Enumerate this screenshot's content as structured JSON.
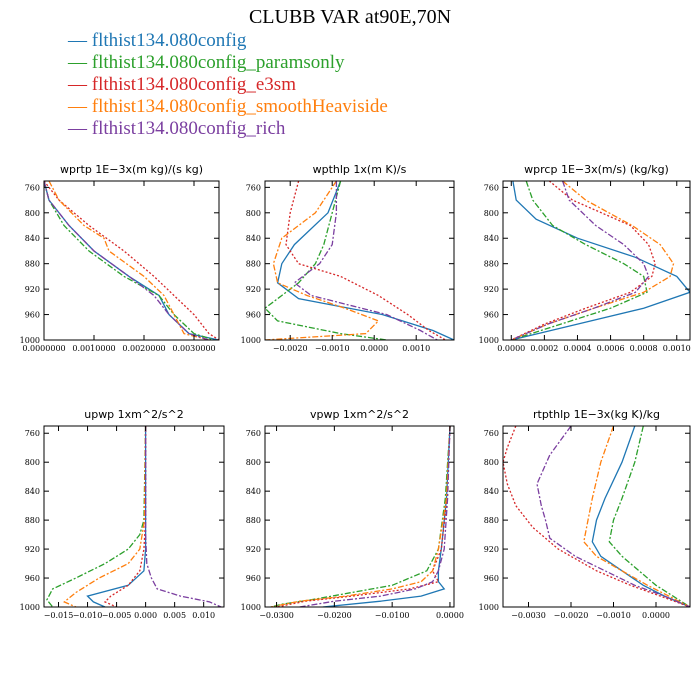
{
  "figure_title": "CLUBB VAR at90E,70N",
  "legend": [
    {
      "label": "— flthist134.080config",
      "color": "#1f77b4"
    },
    {
      "label": "— flthist134.080config_paramsonly",
      "color": "#2ca02c"
    },
    {
      "label": "— flthist134.080config_e3sm",
      "color": "#d62728"
    },
    {
      "label": "— flthist134.080config_smoothHeaviside",
      "color": "#ff7f0e"
    },
    {
      "label": "— flthist134.080config_rich",
      "color": "#7b3fa0"
    }
  ],
  "chart_data": [
    {
      "type": "line",
      "title": "wprtp  1E−3x(m kg)/(s kg)",
      "xlim": [
        0,
        0.0035
      ],
      "ylim": [
        1000,
        750
      ],
      "y_inverted": true,
      "xticks": [
        0,
        0.001,
        0.002,
        0.003
      ],
      "xticklabels": [
        "0.0000000",
        "0.0010000",
        "0.0020000",
        "0.0030000"
      ],
      "yticks": [
        760,
        800,
        840,
        880,
        920,
        960,
        1000
      ],
      "series": [
        {
          "y": [
            750,
            780,
            820,
            860,
            900,
            930,
            960,
            990,
            1000
          ],
          "x": [
            0,
            0.0001,
            0.0005,
            0.001,
            0.0017,
            0.0023,
            0.0025,
            0.0029,
            0.0035
          ]
        },
        {
          "y": [
            750,
            780,
            820,
            860,
            900,
            930,
            960,
            990,
            1000
          ],
          "x": [
            0,
            0.0001,
            0.0004,
            0.0009,
            0.0016,
            0.0023,
            0.0026,
            0.003,
            0.0034
          ]
        },
        {
          "y": [
            750,
            780,
            820,
            860,
            900,
            930,
            960,
            990,
            1000
          ],
          "x": [
            0,
            0.0003,
            0.0009,
            0.0016,
            0.0022,
            0.0026,
            0.003,
            0.0033,
            0.0035
          ]
        },
        {
          "y": [
            750,
            780,
            820,
            840,
            860,
            900,
            930,
            960,
            990,
            1000
          ],
          "x": [
            0.0001,
            0.0003,
            0.0008,
            0.0012,
            0.0013,
            0.002,
            0.0024,
            0.0026,
            0.0028,
            0.0033
          ]
        },
        {
          "y": [
            750,
            780,
            820,
            860,
            900,
            930,
            960,
            990,
            1000
          ],
          "x": [
            0,
            0.0001,
            0.0005,
            0.001,
            0.0017,
            0.0022,
            0.0025,
            0.0029,
            0.0033
          ]
        }
      ]
    },
    {
      "type": "line",
      "title": "wpthlp  1x(m K)/s",
      "xlim": [
        -0.0026,
        0.0019
      ],
      "ylim": [
        1000,
        750
      ],
      "y_inverted": true,
      "xticks": [
        -0.002,
        -0.001,
        0,
        0.001
      ],
      "xticklabels": [
        "−0.0020",
        "−0.0010",
        "0.0000",
        "0.0010"
      ],
      "yticks": [
        760,
        800,
        840,
        880,
        920,
        960,
        1000
      ],
      "series": [
        {
          "y": [
            750,
            800,
            850,
            880,
            910,
            935,
            960,
            985,
            1000
          ],
          "x": [
            -0.0008,
            -0.0011,
            -0.0019,
            -0.0022,
            -0.0023,
            -0.0018,
            0.0002,
            0.0014,
            0.0019
          ]
        },
        {
          "y": [
            750,
            800,
            850,
            880,
            910,
            930,
            950,
            970,
            990,
            1000
          ],
          "x": [
            -0.0008,
            -0.001,
            -0.0012,
            -0.0014,
            -0.0018,
            -0.0022,
            -0.0026,
            -0.0023,
            -0.0008,
            0.0003
          ]
        },
        {
          "y": [
            750,
            800,
            850,
            880,
            900,
            930,
            960,
            985,
            1000
          ],
          "x": [
            -0.0018,
            -0.002,
            -0.0021,
            -0.0018,
            -0.0008,
            0.0001,
            0.0008,
            0.0013,
            0.0017
          ]
        },
        {
          "y": [
            750,
            800,
            840,
            880,
            910,
            930,
            950,
            970,
            990,
            1000
          ],
          "x": [
            -0.0009,
            -0.0014,
            -0.0022,
            -0.0024,
            -0.0023,
            -0.0016,
            -0.0007,
            0.0001,
            -0.0002,
            -0.0026
          ]
        },
        {
          "y": [
            750,
            800,
            850,
            880,
            910,
            930,
            960,
            985,
            1000
          ],
          "x": [
            -0.0009,
            -0.0009,
            -0.001,
            -0.0013,
            -0.0019,
            -0.0015,
            0.0003,
            0.0011,
            0.0015
          ]
        }
      ]
    },
    {
      "type": "line",
      "title": "wprcp  1E−3x(m/s) (kg/kg)",
      "xlim": [
        -5e-05,
        0.00108
      ],
      "ylim": [
        1000,
        750
      ],
      "y_inverted": true,
      "xticks": [
        0,
        0.0002,
        0.0004,
        0.0006,
        0.0008,
        0.001
      ],
      "xticklabels": [
        "0.0000",
        "0.0002",
        "0.0004",
        "0.0006",
        "0.0008",
        "0.0010"
      ],
      "yticks": [
        760,
        800,
        840,
        880,
        920,
        960,
        1000
      ],
      "series": [
        {
          "y": [
            750,
            780,
            810,
            840,
            870,
            900,
            925,
            950,
            975,
            1000
          ],
          "x": [
            1e-05,
            3e-05,
            0.00015,
            0.0004,
            0.00075,
            0.001,
            0.00108,
            0.0008,
            0.0004,
            0
          ]
        },
        {
          "y": [
            750,
            780,
            820,
            850,
            880,
            900,
            925,
            950,
            975,
            1000
          ],
          "x": [
            9e-05,
            0.00013,
            0.00025,
            0.00045,
            0.00068,
            0.0008,
            0.00082,
            0.0006,
            0.0003,
            0
          ]
        },
        {
          "y": [
            750,
            780,
            820,
            850,
            880,
            900,
            925,
            950,
            975,
            1000
          ],
          "x": [
            0.00023,
            0.00037,
            0.00072,
            0.00083,
            0.00087,
            0.00085,
            0.00072,
            0.00045,
            0.0002,
            0
          ]
        },
        {
          "y": [
            750,
            780,
            820,
            850,
            880,
            900,
            925,
            950,
            975,
            1000
          ],
          "x": [
            0.00031,
            0.00045,
            0.00073,
            0.0009,
            0.00098,
            0.00096,
            0.0008,
            0.0005,
            0.00022,
            0
          ]
        },
        {
          "y": [
            750,
            780,
            820,
            850,
            880,
            900,
            925,
            950,
            975,
            1000
          ],
          "x": [
            0.00031,
            0.00035,
            0.00051,
            0.00068,
            0.0008,
            0.00083,
            0.00075,
            0.0005,
            0.00022,
            0
          ]
        }
      ]
    },
    {
      "type": "line",
      "title": "upwp  1xm^2/s^2",
      "xlim": [
        -0.0175,
        0.0135
      ],
      "ylim": [
        1000,
        750
      ],
      "y_inverted": true,
      "xticks": [
        -0.015,
        -0.01,
        -0.005,
        0,
        0.005,
        0.01
      ],
      "xticklabels": [
        "−0.015",
        "−0.010",
        "−0.005",
        "0.000",
        "0.005",
        "0.010"
      ],
      "yticks": [
        760,
        800,
        840,
        880,
        920,
        960,
        1000
      ],
      "series": [
        {
          "y": [
            750,
            880,
            920,
            950,
            970,
            985,
            993,
            1000
          ],
          "x": [
            0,
            0,
            0,
            -0.0003,
            -0.003,
            -0.01,
            -0.009,
            -0.007
          ]
        },
        {
          "y": [
            750,
            880,
            900,
            920,
            940,
            960,
            975,
            990,
            1000
          ],
          "x": [
            0,
            -0.0003,
            -0.001,
            -0.003,
            -0.007,
            -0.012,
            -0.016,
            -0.017,
            -0.016
          ]
        },
        {
          "y": [
            750,
            880,
            920,
            950,
            970,
            985,
            993,
            1000
          ],
          "x": [
            0,
            0,
            -0.0003,
            -0.001,
            -0.003,
            -0.006,
            -0.007,
            -0.005
          ]
        },
        {
          "y": [
            750,
            880,
            920,
            940,
            960,
            980,
            993,
            1000
          ],
          "x": [
            0,
            -0.0002,
            -0.001,
            -0.003,
            -0.008,
            -0.012,
            -0.014,
            -0.012
          ]
        },
        {
          "y": [
            750,
            900,
            940,
            960,
            975,
            985,
            993,
            1000
          ],
          "x": [
            0,
            0,
            0.0002,
            0.001,
            0.002,
            0.006,
            0.011,
            0.013
          ]
        }
      ]
    },
    {
      "type": "line",
      "title": "vpwp  1xm^2/s^2",
      "xlim": [
        -0.032,
        0.0007
      ],
      "ylim": [
        1000,
        750
      ],
      "y_inverted": true,
      "xticks": [
        -0.03,
        -0.02,
        -0.01,
        0
      ],
      "xticklabels": [
        "−0.0300",
        "−0.0200",
        "−0.0100",
        "0.0000"
      ],
      "yticks": [
        760,
        800,
        840,
        880,
        920,
        960,
        1000
      ],
      "series": [
        {
          "y": [
            750,
            850,
            920,
            950,
            965,
            975,
            985,
            992,
            1000
          ],
          "x": [
            0,
            -0.0006,
            -0.0015,
            -0.002,
            -0.002,
            -0.001,
            -0.005,
            -0.012,
            -0.022
          ]
        },
        {
          "y": [
            750,
            850,
            920,
            950,
            970,
            980,
            990,
            996,
            1000
          ],
          "x": [
            0,
            -0.0008,
            -0.002,
            -0.004,
            -0.01,
            -0.017,
            -0.024,
            -0.029,
            -0.031
          ]
        },
        {
          "y": [
            750,
            850,
            920,
            950,
            965,
            975,
            985,
            992,
            1000
          ],
          "x": [
            0,
            -0.0005,
            -0.0015,
            -0.003,
            -0.002,
            -0.007,
            -0.017,
            -0.025,
            -0.03
          ]
        },
        {
          "y": [
            750,
            850,
            920,
            950,
            965,
            975,
            985,
            992,
            1000
          ],
          "x": [
            0,
            -0.0006,
            -0.002,
            -0.003,
            -0.005,
            -0.01,
            -0.018,
            -0.026,
            -0.031
          ]
        },
        {
          "y": [
            750,
            850,
            920,
            950,
            965,
            975,
            985,
            992,
            1000
          ],
          "x": [
            0,
            -0.0004,
            -0.001,
            -0.002,
            -0.003,
            -0.006,
            -0.012,
            -0.02,
            -0.026
          ]
        }
      ]
    },
    {
      "type": "line",
      "title": "rtpthlp  1E−3x(kg K)/kg",
      "xlim": [
        -0.0036,
        0.0008
      ],
      "ylim": [
        1000,
        750
      ],
      "y_inverted": true,
      "xticks": [
        -0.003,
        -0.002,
        -0.001,
        0
      ],
      "xticklabels": [
        "−0.0030",
        "−0.0020",
        "−0.0010",
        "0.0000"
      ],
      "yticks": [
        760,
        800,
        840,
        880,
        920,
        960,
        1000
      ],
      "series": [
        {
          "y": [
            750,
            800,
            850,
            880,
            910,
            930,
            950,
            970,
            985,
            1000
          ],
          "x": [
            -0.0005,
            -0.0008,
            -0.0012,
            -0.0014,
            -0.0015,
            -0.0013,
            -0.0008,
            -0.0003,
            0.0002,
            0.0008
          ]
        },
        {
          "y": [
            750,
            800,
            850,
            880,
            910,
            930,
            950,
            970,
            985,
            1000
          ],
          "x": [
            -0.0003,
            -0.0005,
            -0.0008,
            -0.001,
            -0.0011,
            -0.0008,
            -0.0004,
            0,
            0.0004,
            0.0008
          ]
        },
        {
          "y": [
            750,
            780,
            800,
            830,
            860,
            890,
            920,
            950,
            970,
            985,
            1000
          ],
          "x": [
            -0.0033,
            -0.0035,
            -0.0036,
            -0.0035,
            -0.0033,
            -0.0029,
            -0.0023,
            -0.0014,
            -0.0006,
            0.0001,
            0.0008
          ]
        },
        {
          "y": [
            750,
            800,
            850,
            880,
            910,
            930,
            950,
            970,
            985,
            1000
          ],
          "x": [
            -0.001,
            -0.0013,
            -0.0015,
            -0.0016,
            -0.0017,
            -0.0014,
            -0.0008,
            -0.0002,
            0.0003,
            0.0008
          ]
        },
        {
          "y": [
            750,
            790,
            830,
            860,
            880,
            905,
            930,
            950,
            970,
            985,
            1000
          ],
          "x": [
            -0.002,
            -0.0025,
            -0.0028,
            -0.0027,
            -0.0026,
            -0.0025,
            -0.0019,
            -0.0012,
            -0.0005,
            0.0002,
            0.0008
          ]
        }
      ]
    }
  ]
}
